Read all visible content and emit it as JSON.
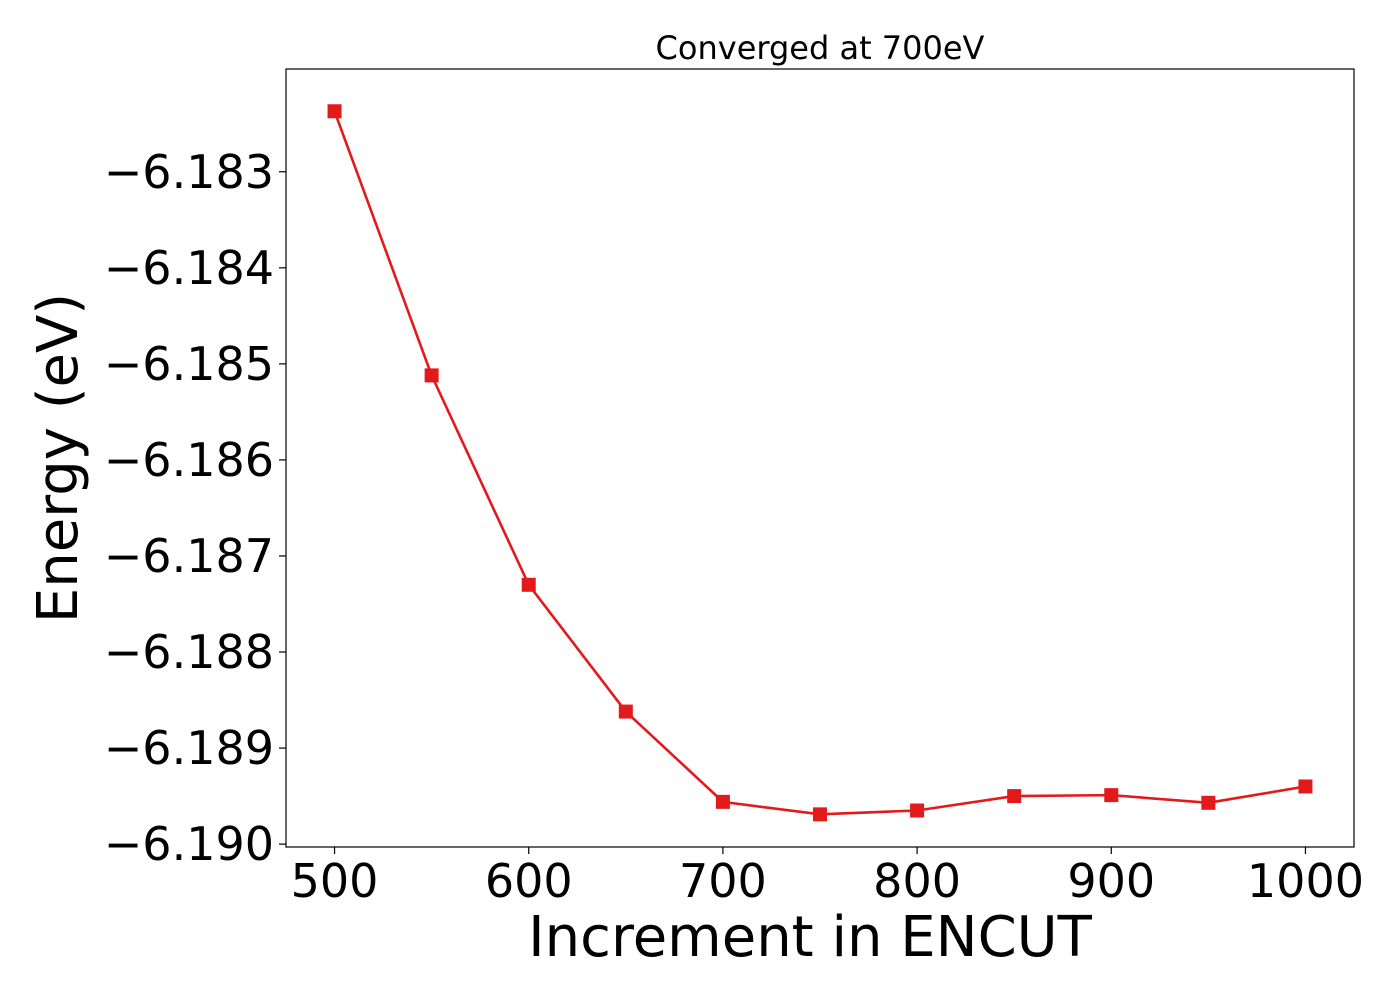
{
  "chart_data": {
    "type": "line",
    "title": "Converged at 700eV",
    "xlabel": "Increment in ENCUT",
    "ylabel": "Energy (eV)",
    "xlim": [
      475,
      1025
    ],
    "ylim": [
      -6.19003,
      -6.18193
    ],
    "xticks": [
      500,
      600,
      700,
      800,
      900,
      1000
    ],
    "xtick_labels": [
      "500",
      "600",
      "700",
      "800",
      "900",
      "1000"
    ],
    "yticks": [
      -6.183,
      -6.184,
      -6.185,
      -6.186,
      -6.187,
      -6.188,
      -6.189,
      -6.19
    ],
    "ytick_labels": [
      "−6.183",
      "−6.184",
      "−6.185",
      "−6.186",
      "−6.187",
      "−6.188",
      "−6.189",
      "−6.190"
    ],
    "grid": false,
    "series": [
      {
        "color": "#e31a1c",
        "marker": "square",
        "x": [
          500,
          550,
          600,
          650,
          700,
          750,
          800,
          850,
          900,
          950,
          1000
        ],
        "y": [
          -6.18237,
          -6.18512,
          -6.1873,
          -6.18862,
          -6.18956,
          -6.18969,
          -6.18965,
          -6.1895,
          -6.18949,
          -6.18957,
          -6.1894
        ]
      }
    ]
  }
}
